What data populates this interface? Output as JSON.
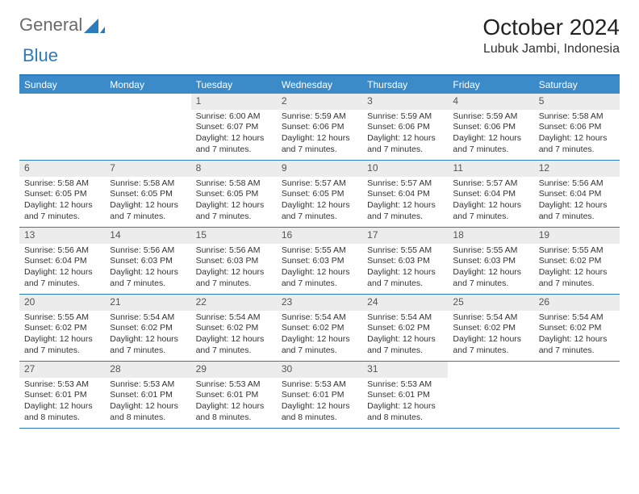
{
  "logo": {
    "text_general": "General",
    "text_blue": "Blue"
  },
  "title": "October 2024",
  "location": "Lubuk Jambi, Indonesia",
  "colors": {
    "header_bar": "#3b8bc9",
    "header_border": "#2b7bbf",
    "daynum_bg": "#ececec",
    "logo_blue": "#2b7bbf",
    "logo_gray": "#6a6a6a"
  },
  "day_names": [
    "Sunday",
    "Monday",
    "Tuesday",
    "Wednesday",
    "Thursday",
    "Friday",
    "Saturday"
  ],
  "weeks": [
    [
      {
        "empty": true
      },
      {
        "empty": true
      },
      {
        "n": "1",
        "sunrise": "6:00 AM",
        "sunset": "6:07 PM",
        "daylight": "12 hours and 7 minutes."
      },
      {
        "n": "2",
        "sunrise": "5:59 AM",
        "sunset": "6:06 PM",
        "daylight": "12 hours and 7 minutes."
      },
      {
        "n": "3",
        "sunrise": "5:59 AM",
        "sunset": "6:06 PM",
        "daylight": "12 hours and 7 minutes."
      },
      {
        "n": "4",
        "sunrise": "5:59 AM",
        "sunset": "6:06 PM",
        "daylight": "12 hours and 7 minutes."
      },
      {
        "n": "5",
        "sunrise": "5:58 AM",
        "sunset": "6:06 PM",
        "daylight": "12 hours and 7 minutes."
      }
    ],
    [
      {
        "n": "6",
        "sunrise": "5:58 AM",
        "sunset": "6:05 PM",
        "daylight": "12 hours and 7 minutes."
      },
      {
        "n": "7",
        "sunrise": "5:58 AM",
        "sunset": "6:05 PM",
        "daylight": "12 hours and 7 minutes."
      },
      {
        "n": "8",
        "sunrise": "5:58 AM",
        "sunset": "6:05 PM",
        "daylight": "12 hours and 7 minutes."
      },
      {
        "n": "9",
        "sunrise": "5:57 AM",
        "sunset": "6:05 PM",
        "daylight": "12 hours and 7 minutes."
      },
      {
        "n": "10",
        "sunrise": "5:57 AM",
        "sunset": "6:04 PM",
        "daylight": "12 hours and 7 minutes."
      },
      {
        "n": "11",
        "sunrise": "5:57 AM",
        "sunset": "6:04 PM",
        "daylight": "12 hours and 7 minutes."
      },
      {
        "n": "12",
        "sunrise": "5:56 AM",
        "sunset": "6:04 PM",
        "daylight": "12 hours and 7 minutes."
      }
    ],
    [
      {
        "n": "13",
        "sunrise": "5:56 AM",
        "sunset": "6:04 PM",
        "daylight": "12 hours and 7 minutes."
      },
      {
        "n": "14",
        "sunrise": "5:56 AM",
        "sunset": "6:03 PM",
        "daylight": "12 hours and 7 minutes."
      },
      {
        "n": "15",
        "sunrise": "5:56 AM",
        "sunset": "6:03 PM",
        "daylight": "12 hours and 7 minutes."
      },
      {
        "n": "16",
        "sunrise": "5:55 AM",
        "sunset": "6:03 PM",
        "daylight": "12 hours and 7 minutes."
      },
      {
        "n": "17",
        "sunrise": "5:55 AM",
        "sunset": "6:03 PM",
        "daylight": "12 hours and 7 minutes."
      },
      {
        "n": "18",
        "sunrise": "5:55 AM",
        "sunset": "6:03 PM",
        "daylight": "12 hours and 7 minutes."
      },
      {
        "n": "19",
        "sunrise": "5:55 AM",
        "sunset": "6:02 PM",
        "daylight": "12 hours and 7 minutes."
      }
    ],
    [
      {
        "n": "20",
        "sunrise": "5:55 AM",
        "sunset": "6:02 PM",
        "daylight": "12 hours and 7 minutes."
      },
      {
        "n": "21",
        "sunrise": "5:54 AM",
        "sunset": "6:02 PM",
        "daylight": "12 hours and 7 minutes."
      },
      {
        "n": "22",
        "sunrise": "5:54 AM",
        "sunset": "6:02 PM",
        "daylight": "12 hours and 7 minutes."
      },
      {
        "n": "23",
        "sunrise": "5:54 AM",
        "sunset": "6:02 PM",
        "daylight": "12 hours and 7 minutes."
      },
      {
        "n": "24",
        "sunrise": "5:54 AM",
        "sunset": "6:02 PM",
        "daylight": "12 hours and 7 minutes."
      },
      {
        "n": "25",
        "sunrise": "5:54 AM",
        "sunset": "6:02 PM",
        "daylight": "12 hours and 7 minutes."
      },
      {
        "n": "26",
        "sunrise": "5:54 AM",
        "sunset": "6:02 PM",
        "daylight": "12 hours and 7 minutes."
      }
    ],
    [
      {
        "n": "27",
        "sunrise": "5:53 AM",
        "sunset": "6:01 PM",
        "daylight": "12 hours and 8 minutes."
      },
      {
        "n": "28",
        "sunrise": "5:53 AM",
        "sunset": "6:01 PM",
        "daylight": "12 hours and 8 minutes."
      },
      {
        "n": "29",
        "sunrise": "5:53 AM",
        "sunset": "6:01 PM",
        "daylight": "12 hours and 8 minutes."
      },
      {
        "n": "30",
        "sunrise": "5:53 AM",
        "sunset": "6:01 PM",
        "daylight": "12 hours and 8 minutes."
      },
      {
        "n": "31",
        "sunrise": "5:53 AM",
        "sunset": "6:01 PM",
        "daylight": "12 hours and 8 minutes."
      },
      {
        "empty": true
      },
      {
        "empty": true
      }
    ]
  ],
  "labels": {
    "sunrise": "Sunrise:",
    "sunset": "Sunset:",
    "daylight": "Daylight:"
  }
}
